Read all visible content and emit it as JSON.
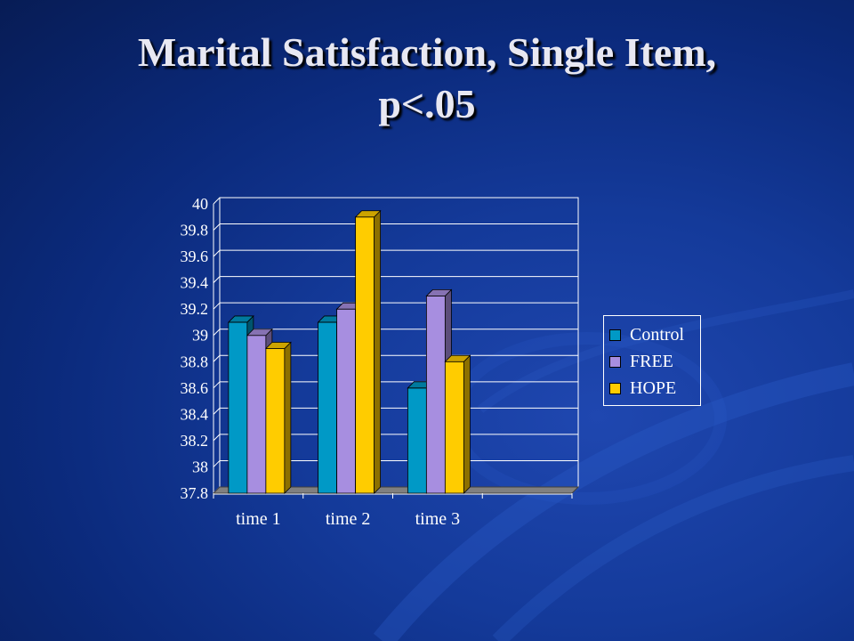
{
  "slide": {
    "title_line1": "Marital Satisfaction, Single Item,",
    "title_line2": "p<.05"
  },
  "colors": {
    "background": "#0b2a7c",
    "text": "#ffffff",
    "title": "#e8e8f2"
  },
  "chart_data": {
    "type": "bar",
    "categories": [
      "time 1",
      "time 2",
      "time 3"
    ],
    "series": [
      {
        "name": "Control",
        "values": [
          39.1,
          39.1,
          38.6
        ],
        "color": "#0099c6"
      },
      {
        "name": "FREE",
        "values": [
          39.0,
          39.2,
          39.3
        ],
        "color": "#a78ee0"
      },
      {
        "name": "HOPE",
        "values": [
          38.9,
          39.9,
          38.8
        ],
        "color": "#ffcc00"
      }
    ],
    "yticks": [
      "37.8",
      "38",
      "38.2",
      "38.4",
      "38.6",
      "38.8",
      "39",
      "39.2",
      "39.4",
      "39.6",
      "39.8",
      "40"
    ],
    "ylim": [
      37.8,
      40
    ],
    "grid": true,
    "legend_position": "right",
    "style": "3d-clustered-column"
  }
}
